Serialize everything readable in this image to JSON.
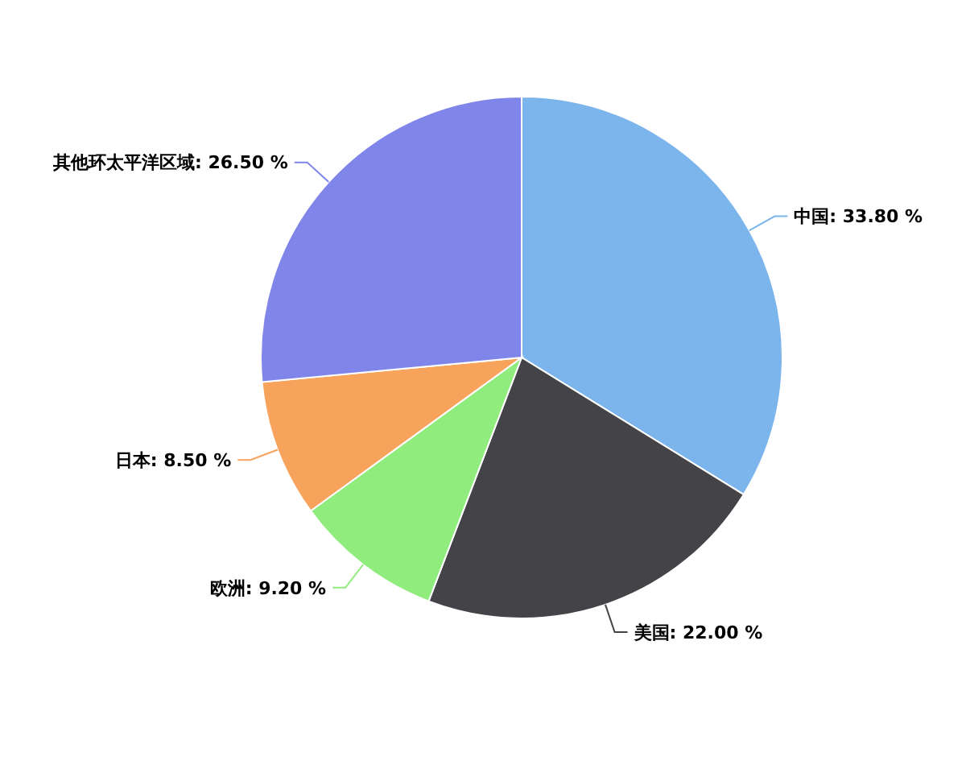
{
  "chart_data": {
    "type": "pie",
    "categories": [
      "中国",
      "美国",
      "欧洲",
      "日本",
      "其他环太平洋区域"
    ],
    "values": [
      33.8,
      22.0,
      9.2,
      8.5,
      26.5
    ],
    "value_labels": [
      "33.80 %",
      "22.00 %",
      "9.20 %",
      "8.50 %",
      "26.50 %"
    ],
    "colors": [
      "#7cb5ec",
      "#434348",
      "#90ed7d",
      "#f7a35c",
      "#8085e9"
    ],
    "legend": false
  }
}
